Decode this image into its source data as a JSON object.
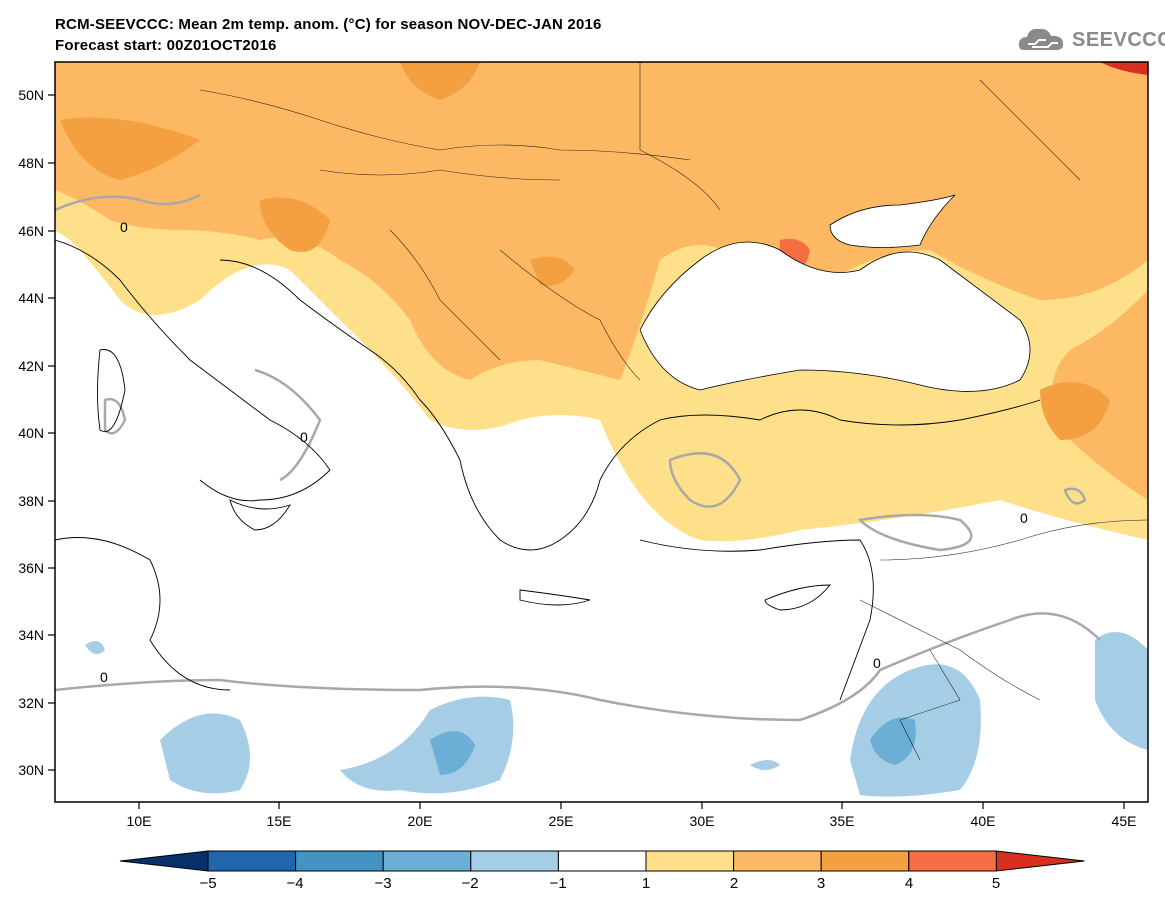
{
  "header": {
    "title_line1": "RCM-SEEVCCC: Mean 2m temp. anom. (°C) for season NOV-DEC-JAN 2016",
    "title_line2": "Forecast start: 00Z01OCT2016",
    "logo_text": "SEEVCCC"
  },
  "axes": {
    "lat_labels": [
      "50N",
      "48N",
      "46N",
      "44N",
      "42N",
      "40N",
      "38N",
      "36N",
      "34N",
      "32N",
      "30N"
    ],
    "lon_labels": [
      "10E",
      "15E",
      "20E",
      "25E",
      "30E",
      "35E",
      "40E",
      "45E"
    ]
  },
  "contour_label": "0",
  "colorbar": {
    "labels": [
      "−5",
      "−4",
      "−3",
      "−2",
      "−1",
      "1",
      "2",
      "3",
      "4",
      "5"
    ],
    "colors": [
      "#08306b",
      "#2166ac",
      "#4393c3",
      "#6baed6",
      "#a6cde6",
      "#ffffff",
      "#fee08b",
      "#fdb863",
      "#f4a040",
      "#f46d43",
      "#d7301f"
    ]
  }
}
